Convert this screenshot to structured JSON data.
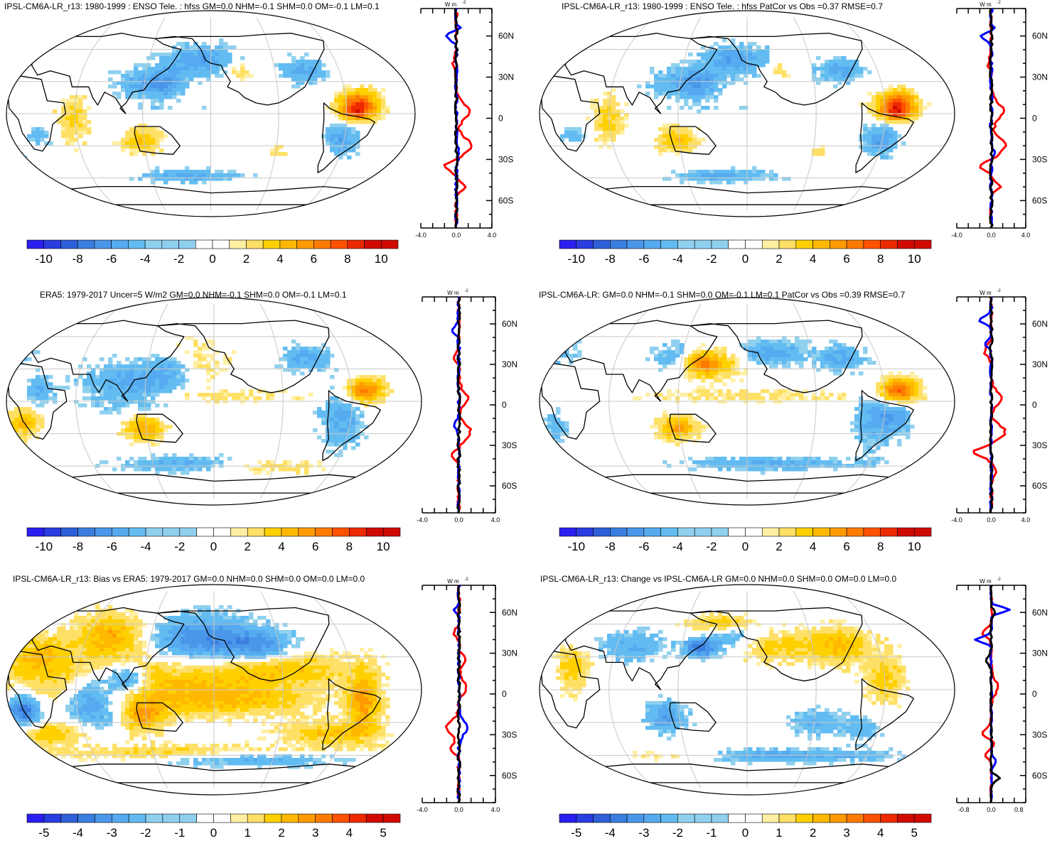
{
  "palette": {
    "blues": [
      "#2b1ef0",
      "#2a3de0",
      "#2f5fd9",
      "#3a7ee0",
      "#4a97ea",
      "#56aaf0",
      "#62bcf2",
      "#8fd0ef"
    ],
    "reds": [
      "#ffefa3",
      "#ffe066",
      "#ffd000",
      "#ffb800",
      "#ff9a00",
      "#ff7a00",
      "#ff5200",
      "#ee2a00",
      "#d00a00"
    ],
    "white": "#ffffff",
    "profile_colors": {
      "blue": "#0000ff",
      "red": "#ff0000",
      "black": "#000000"
    },
    "graticule": "#c8c8c8"
  },
  "chart_data": [
    {
      "id": "p1",
      "type": "heatmap",
      "title": "IPSL-CM6A-LR_r13: 1980-1999 : ENSO Tele. : hfss GM=0.0 NHM=-0.1 SHM=0.0 OM=-0.1 LM=0.1",
      "colorbar": {
        "labels": [
          "-10",
          "-8",
          "-6",
          "-4",
          "-2",
          "0",
          "2",
          "4",
          "6",
          "8",
          "10"
        ],
        "range": [
          -11,
          11
        ]
      },
      "profile": {
        "unit_label": "W m",
        "unit_sup": "-2",
        "xlim": [
          -4,
          4
        ],
        "xticks": [
          "-4.0",
          "0.0",
          "4.0"
        ],
        "lat_labels": [
          "60N",
          "30N",
          "0",
          "30S",
          "60S"
        ],
        "lat_values": [
          60,
          30,
          0,
          -30,
          -60
        ]
      }
    },
    {
      "id": "p2",
      "type": "heatmap",
      "title": "IPSL-CM6A-LR_r13: 1980-1999 : ENSO Tele. : hfss PatCor vs Obs =0.37 RMSE=0.7",
      "colorbar": {
        "labels": [
          "-10",
          "-8",
          "-6",
          "-4",
          "-2",
          "0",
          "2",
          "4",
          "6",
          "8",
          "10"
        ],
        "range": [
          -11,
          11
        ]
      },
      "profile": {
        "unit_label": "W m",
        "unit_sup": "-2",
        "xlim": [
          -4,
          4
        ],
        "xticks": [
          "-4.0",
          "0.0",
          "4.0"
        ],
        "lat_labels": [
          "60N",
          "30N",
          "0",
          "30S",
          "60S"
        ],
        "lat_values": [
          60,
          30,
          0,
          -30,
          -60
        ]
      }
    },
    {
      "id": "p3",
      "type": "heatmap",
      "title": "ERA5: 1979-2017 Uncer=5 W/m2 GM=0.0 NHM=-0.1 SHM=0.0 OM=-0.1 LM=0.1",
      "colorbar": {
        "labels": [
          "-10",
          "-8",
          "-6",
          "-4",
          "-2",
          "0",
          "2",
          "4",
          "6",
          "8",
          "10"
        ],
        "range": [
          -11,
          11
        ]
      },
      "profile": {
        "unit_label": "W m",
        "unit_sup": "-2",
        "xlim": [
          -4,
          4
        ],
        "xticks": [
          "-4.0",
          "0.0",
          "4.0"
        ],
        "lat_labels": [
          "60N",
          "30N",
          "0",
          "30S",
          "60S"
        ],
        "lat_values": [
          60,
          30,
          0,
          -30,
          -60
        ]
      }
    },
    {
      "id": "p4",
      "type": "heatmap",
      "title": "IPSL-CM6A-LR: GM=0.0 NHM=-0.1 SHM=0.0 OM=-0.1 LM=0.1 PatCor vs Obs =0.39 RMSE=0.7",
      "colorbar": {
        "labels": [
          "-10",
          "-8",
          "-6",
          "-4",
          "-2",
          "0",
          "2",
          "4",
          "6",
          "8",
          "10"
        ],
        "range": [
          -11,
          11
        ]
      },
      "profile": {
        "unit_label": "W m",
        "unit_sup": "-2",
        "xlim": [
          -4,
          4
        ],
        "xticks": [
          "-4.0",
          "0.0",
          "4.0"
        ],
        "lat_labels": [
          "60N",
          "30N",
          "0",
          "30S",
          "60S"
        ],
        "lat_values": [
          60,
          30,
          0,
          -30,
          -60
        ]
      }
    },
    {
      "id": "p5",
      "type": "heatmap",
      "title": "IPSL-CM6A-LR_r13: Bias vs ERA5: 1979-2017 GM=0.0 NHM=0.0 SHM=0.0 OM=0.0 LM=0.0",
      "colorbar": {
        "labels": [
          "-5",
          "-4",
          "-3",
          "-2",
          "-1",
          "0",
          "1",
          "2",
          "3",
          "4",
          "5"
        ],
        "range": [
          -5.5,
          5.5
        ]
      },
      "profile": {
        "unit_label": "W m",
        "unit_sup": "-2",
        "xlim": [
          -4,
          4
        ],
        "xticks": [
          "-4.0",
          "0.0",
          "4.0"
        ],
        "lat_labels": [
          "60N",
          "30N",
          "0",
          "30S",
          "60S"
        ],
        "lat_values": [
          60,
          30,
          0,
          -30,
          -60
        ]
      }
    },
    {
      "id": "p6",
      "type": "heatmap",
      "title": "IPSL-CM6A-LR_r13: Change vs IPSL-CM6A-LR GM=0.0 NHM=0.0 SHM=0.0 OM=0.0 LM=0.0",
      "colorbar": {
        "labels": [
          "-5",
          "-4",
          "-3",
          "-2",
          "-1",
          "0",
          "1",
          "2",
          "3",
          "4",
          "5"
        ],
        "range": [
          -5.5,
          5.5
        ]
      },
      "profile": {
        "unit_label": "W m",
        "unit_sup": "-2",
        "xlim": [
          -1.0,
          1.0
        ],
        "xticks": [
          "-0.8",
          "0.0",
          "0.8"
        ],
        "lat_labels": [
          "60N",
          "30N",
          "0",
          "30S",
          "60S"
        ],
        "lat_values": [
          60,
          30,
          0,
          -30,
          -60
        ]
      }
    }
  ]
}
